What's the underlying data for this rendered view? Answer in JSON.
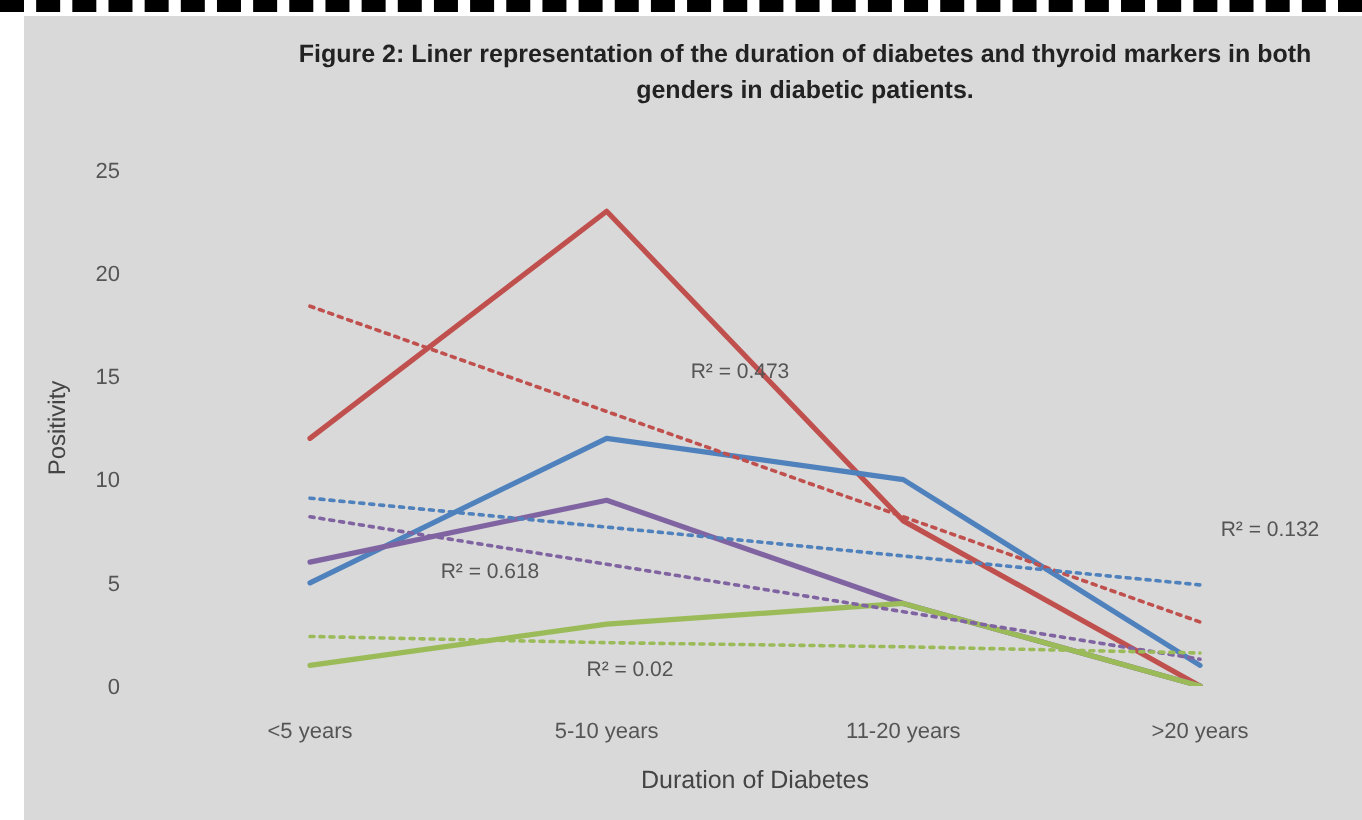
{
  "chart_data": {
    "type": "line",
    "title": "Figure 2: Liner representation of the duration of diabetes and thyroid markers in both genders in diabetic patients.",
    "xlabel": "Duration of Diabetes",
    "ylabel": "Positivity",
    "categories": [
      "<5 years",
      "5-10 years",
      "11-20 years",
      ">20 years"
    ],
    "series": [
      {
        "color": "#c0504d",
        "values": [
          12,
          23,
          8,
          0
        ]
      },
      {
        "color": "#4f81bd",
        "values": [
          5,
          12,
          10,
          1
        ]
      },
      {
        "color": "#8064a2",
        "values": [
          6,
          9,
          4,
          0
        ]
      },
      {
        "color": "#9bbb59",
        "values": [
          1,
          3,
          4,
          0
        ]
      },
      {
        "type": "line",
        "line_style": "dotted",
        "color": "#c0504d",
        "values": [
          18.4,
          13.3,
          8.2,
          3.1
        ]
      },
      {
        "type": "line",
        "line_style": "dotted",
        "color": "#4f81bd",
        "values": [
          9.1,
          7.7,
          6.3,
          4.9
        ]
      },
      {
        "type": "line",
        "line_style": "dotted",
        "color": "#8064a2",
        "values": [
          8.2,
          5.9,
          3.6,
          1.3
        ]
      },
      {
        "type": "line",
        "line_style": "dotted",
        "color": "#9bbb59",
        "values": [
          2.4,
          2.1,
          1.9,
          1.6
        ]
      }
    ],
    "annotations": [
      "R² = 0.473",
      "R² = 0.618",
      "R² = 0.02",
      "R² = 0.132"
    ],
    "ylim": [
      0,
      25
    ],
    "yticks": [
      0,
      5,
      10,
      15,
      20,
      25
    ],
    "grid": false,
    "legend": false,
    "marker": "none",
    "line_style": "solid"
  }
}
